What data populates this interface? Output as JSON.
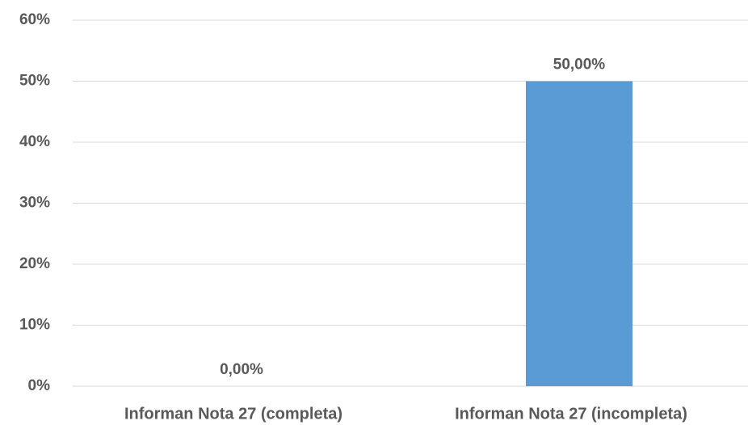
{
  "chart_data": {
    "type": "bar",
    "categories": [
      "Informan Nota 27 (completa)",
      "Informan Nota 27 (incompleta)"
    ],
    "values": [
      0,
      50
    ],
    "value_labels": [
      "0,00%",
      "50,00%"
    ],
    "color": "#5b9bd5",
    "ylim": [
      0,
      60
    ],
    "yticks": [
      {
        "value": 0,
        "label": "0%"
      },
      {
        "value": 10,
        "label": "10%"
      },
      {
        "value": 20,
        "label": "20%"
      },
      {
        "value": 30,
        "label": "30%"
      },
      {
        "value": 40,
        "label": "40%"
      },
      {
        "value": 50,
        "label": "50%"
      },
      {
        "value": 60,
        "label": "60%"
      }
    ],
    "grid": true
  }
}
